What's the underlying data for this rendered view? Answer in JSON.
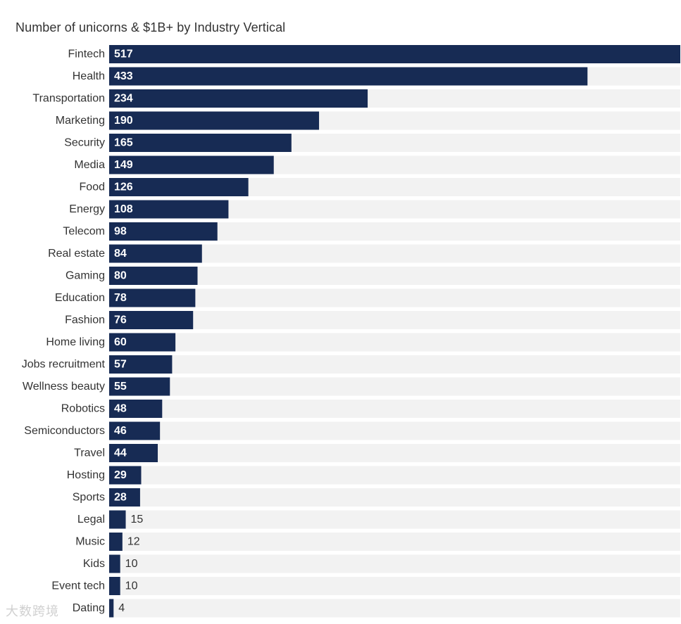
{
  "chart_data": {
    "type": "bar",
    "orientation": "horizontal",
    "title": "Number of unicorns & $1B+ by Industry Vertical",
    "categories": [
      "Fintech",
      "Health",
      "Transportation",
      "Marketing",
      "Security",
      "Media",
      "Food",
      "Energy",
      "Telecom",
      "Real estate",
      "Gaming",
      "Education",
      "Fashion",
      "Home living",
      "Jobs recruitment",
      "Wellness beauty",
      "Robotics",
      "Semiconductors",
      "Travel",
      "Hosting",
      "Sports",
      "Legal",
      "Music",
      "Kids",
      "Event tech",
      "Dating"
    ],
    "values": [
      517,
      433,
      234,
      190,
      165,
      149,
      126,
      108,
      98,
      84,
      80,
      78,
      76,
      60,
      57,
      55,
      48,
      46,
      44,
      29,
      28,
      15,
      12,
      10,
      10,
      4
    ],
    "xlim": [
      0,
      517
    ],
    "grid": false,
    "legend": "none",
    "colors": {
      "bar": "#172b54",
      "track": "#f2f2f2",
      "label_inside": "#ffffff",
      "label_outside": "#333333"
    }
  },
  "watermark": "大数跨境"
}
